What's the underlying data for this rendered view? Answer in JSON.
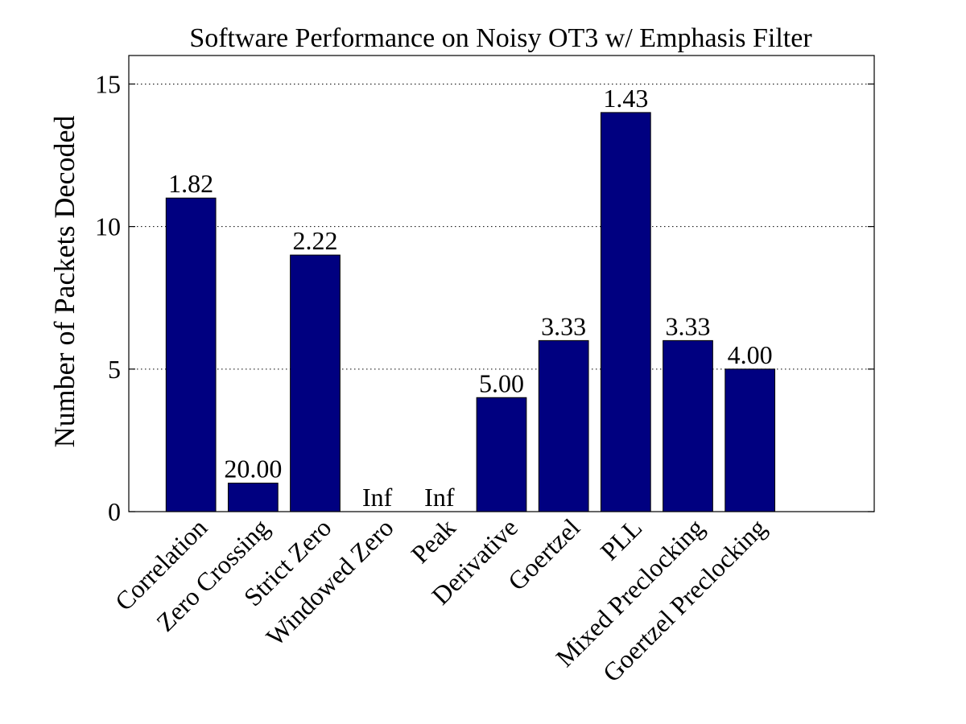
{
  "chart_data": {
    "type": "bar",
    "title": "Software Performance on Noisy OT3 w/ Emphasis Filter",
    "xlabel": "",
    "ylabel": "Number of Packets Decoded",
    "ylim": [
      0,
      16
    ],
    "yticks": [
      0,
      5,
      10,
      15
    ],
    "grid": "horizontal dotted",
    "bar_color": "#000080",
    "categories": [
      "Correlation",
      "Zero Crossing",
      "Strict Zero",
      "Windowed Zero",
      "Peak",
      "Derivative",
      "Goertzel",
      "PLL",
      "Mixed Preclocking",
      "Goertzel Preclocking"
    ],
    "values": [
      11,
      1,
      9,
      0,
      0,
      4,
      6,
      14,
      6,
      5
    ],
    "data_labels": [
      "1.82",
      "20.00",
      "2.22",
      "Inf",
      "Inf",
      "5.00",
      "3.33",
      "1.43",
      "3.33",
      "4.00"
    ],
    "x_slots": 12
  }
}
